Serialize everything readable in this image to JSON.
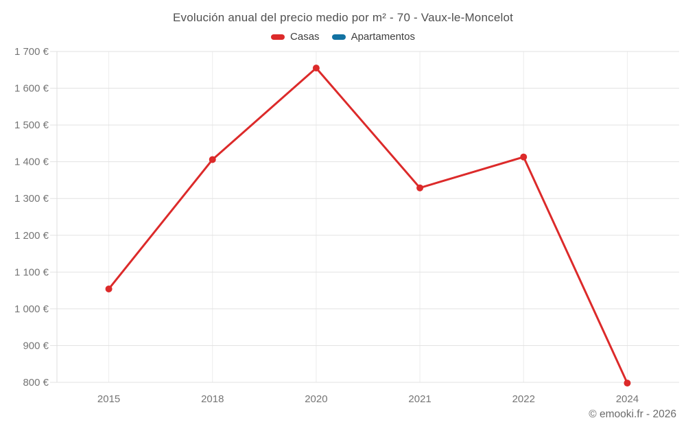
{
  "header": {
    "title": "Evolución anual del precio medio por m² - 70 - Vaux-le-Moncelot"
  },
  "legend": {
    "items": [
      {
        "label": "Casas",
        "color": "#dc2a2a"
      },
      {
        "label": "Apartamentos",
        "color": "#1272a2"
      }
    ]
  },
  "footer": {
    "credit": "© emooki.fr - 2026"
  },
  "chart_data": {
    "type": "line",
    "title": "Evolución anual del precio medio por m² - 70 - Vaux-le-Moncelot",
    "categories": [
      "2015",
      "2018",
      "2020",
      "2021",
      "2022",
      "2024"
    ],
    "series": [
      {
        "name": "Casas",
        "color": "#dc2a2a",
        "values": [
          1054,
          1406,
          1655,
          1329,
          1413,
          798
        ]
      },
      {
        "name": "Apartamentos",
        "color": "#1272a2",
        "values": []
      }
    ],
    "xlabel": "",
    "ylabel": "",
    "ylim": [
      800,
      1700
    ],
    "yticks": {
      "values": [
        800,
        900,
        1000,
        1100,
        1200,
        1300,
        1400,
        1500,
        1600,
        1700
      ],
      "labels": [
        "800 €",
        "900 €",
        "1 000 €",
        "1 100 €",
        "1 200 €",
        "1 300 €",
        "1 400 €",
        "1 500 €",
        "1 600 €",
        "1 700 €"
      ]
    },
    "grid": true,
    "legend_position": "top",
    "point_radius": 5
  }
}
